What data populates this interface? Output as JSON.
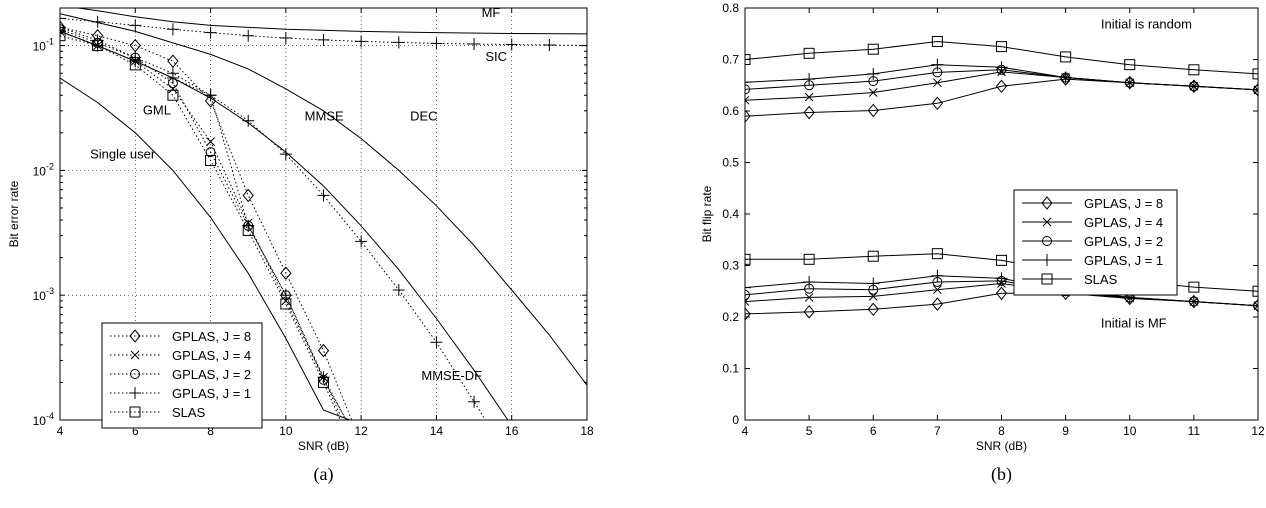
{
  "chart_data": [
    {
      "id": "a",
      "type": "line",
      "panel_label": "(a)",
      "xlabel": "SNR (dB)",
      "ylabel": "Bit error rate",
      "xlim": [
        4,
        18
      ],
      "ylim": [
        0.0001,
        0.2
      ],
      "yscale": "log",
      "grid": true,
      "xticks": [
        4,
        6,
        8,
        10,
        12,
        14,
        16,
        18
      ],
      "yticks": [
        {
          "value": 0.0001,
          "base": "10",
          "exp": "-4"
        },
        {
          "value": 0.001,
          "base": "10",
          "exp": "-3"
        },
        {
          "value": 0.01,
          "base": "10",
          "exp": "-2"
        },
        {
          "value": 0.1,
          "base": "10",
          "exp": "-1"
        }
      ],
      "legend_position": "bottom-left",
      "reference_curves": [
        {
          "label": "MF",
          "x": [
            4,
            5,
            6,
            7,
            8,
            10,
            12,
            14,
            16,
            18
          ],
          "y": [
            0.21,
            0.19,
            0.17,
            0.155,
            0.145,
            0.135,
            0.13,
            0.127,
            0.125,
            0.124
          ]
        },
        {
          "label": "SIC",
          "marker": "plus",
          "dotted": true,
          "x": [
            4,
            5,
            6,
            7,
            8,
            9,
            10,
            11,
            12,
            13,
            14,
            15,
            16,
            17,
            18
          ],
          "y": [
            0.165,
            0.155,
            0.145,
            0.135,
            0.127,
            0.12,
            0.115,
            0.111,
            0.108,
            0.106,
            0.104,
            0.103,
            0.102,
            0.101,
            0.1
          ]
        },
        {
          "label": "DEC",
          "x": [
            4,
            6,
            8,
            9,
            10,
            11,
            12,
            13,
            14,
            15,
            16,
            17,
            18
          ],
          "y": [
            0.18,
            0.13,
            0.085,
            0.065,
            0.045,
            0.03,
            0.018,
            0.01,
            0.0052,
            0.0025,
            0.0011,
            0.00048,
            0.00019
          ]
        },
        {
          "label": "MMSE",
          "x": [
            4,
            5,
            6,
            7,
            8,
            9,
            10,
            11,
            12,
            13,
            14,
            15,
            16,
            17,
            17.4
          ],
          "y": [
            0.13,
            0.1,
            0.075,
            0.055,
            0.038,
            0.024,
            0.014,
            0.0075,
            0.0036,
            0.0016,
            0.00065,
            0.00025,
            9e-05,
            2.8e-05,
            0.0001
          ]
        },
        {
          "label": "MMSE-DF",
          "marker": "plus",
          "dotted": true,
          "x": [
            4,
            5,
            6,
            7,
            8,
            9,
            10,
            11,
            12,
            13,
            14,
            15,
            15.3
          ],
          "y": [
            0.13,
            0.1,
            0.075,
            0.055,
            0.04,
            0.025,
            0.0135,
            0.0063,
            0.0027,
            0.0011,
            0.00042,
            0.00014,
            0.0001
          ]
        },
        {
          "label": "Single user",
          "x": [
            4,
            5,
            6,
            7,
            8,
            9,
            10,
            11,
            11.7
          ],
          "y": [
            0.055,
            0.035,
            0.02,
            0.01,
            0.0042,
            0.0015,
            0.00045,
            0.00012,
            0.0001
          ]
        }
      ],
      "series": [
        {
          "name": "GPLAS, J = 8",
          "marker": "diamond",
          "x": [
            4,
            5,
            6,
            7,
            8,
            9,
            10,
            11,
            11.75
          ],
          "y": [
            0.14,
            0.12,
            0.1,
            0.075,
            0.036,
            0.0063,
            0.0015,
            0.00036,
            0.0001
          ]
        },
        {
          "name": "GPLAS, J = 4",
          "marker": "x",
          "x": [
            4,
            5,
            6,
            7,
            8,
            9,
            10,
            11,
            11.5
          ],
          "y": [
            0.13,
            0.1,
            0.075,
            0.045,
            0.017,
            0.0038,
            0.0009,
            0.00022,
            0.0001
          ]
        },
        {
          "name": "GPLAS, J = 2",
          "marker": "circle",
          "x": [
            4,
            5,
            6,
            7,
            8,
            9,
            10,
            11,
            11.6
          ],
          "y": [
            0.135,
            0.105,
            0.08,
            0.05,
            0.014,
            0.0036,
            0.001,
            0.00021,
            0.0001
          ]
        },
        {
          "name": "GPLAS, J = 1",
          "marker": "plus",
          "x": [
            4,
            5,
            6,
            7,
            8,
            9,
            10,
            11,
            11.6
          ],
          "y": [
            0.14,
            0.11,
            0.08,
            0.06,
            0.04,
            0.0036,
            0.001,
            0.00022,
            0.0001
          ]
        },
        {
          "name": "SLAS",
          "marker": "square",
          "x": [
            4,
            5,
            6,
            7,
            8,
            9,
            10,
            11,
            11.45
          ],
          "y": [
            0.12,
            0.1,
            0.07,
            0.04,
            0.012,
            0.0033,
            0.00085,
            0.0002,
            0.0001
          ]
        }
      ],
      "annotations": [
        {
          "text": "MF",
          "x": 15.2,
          "y": 0.17
        },
        {
          "text": "SIC",
          "x": 15.3,
          "y": 0.075
        },
        {
          "text": "DEC",
          "x": 13.3,
          "y": 0.025
        },
        {
          "text": "MMSE",
          "x": 10.5,
          "y": 0.025
        },
        {
          "text": "GML",
          "x": 6.2,
          "y": 0.028
        },
        {
          "text": "Single user",
          "x": 4.8,
          "y": 0.0125
        },
        {
          "text": "MMSE-DF",
          "x": 13.6,
          "y": 0.00021
        }
      ]
    },
    {
      "id": "b",
      "type": "line",
      "panel_label": "(b)",
      "xlabel": "SNR (dB)",
      "ylabel": "Bit flip rate",
      "xlim": [
        4,
        12
      ],
      "ylim": [
        0,
        0.8
      ],
      "yscale": "linear",
      "grid": false,
      "xticks": [
        4,
        5,
        6,
        7,
        8,
        9,
        10,
        11,
        12
      ],
      "yticks": [
        0,
        0.1,
        0.2,
        0.3,
        0.4,
        0.5,
        0.6,
        0.7,
        0.8
      ],
      "legend_position": "right",
      "groups": [
        {
          "label": "Initial is random",
          "series": [
            {
              "name": "GPLAS, J = 8",
              "marker": "diamond",
              "x": [
                4,
                5,
                6,
                7,
                8,
                9,
                10,
                11,
                12
              ],
              "y": [
                0.59,
                0.597,
                0.601,
                0.615,
                0.648,
                0.662,
                0.655,
                0.648,
                0.641
              ]
            },
            {
              "name": "GPLAS, J = 4",
              "marker": "x",
              "x": [
                4,
                5,
                6,
                7,
                8,
                9,
                10,
                11,
                12
              ],
              "y": [
                0.621,
                0.627,
                0.636,
                0.655,
                0.676,
                0.665,
                0.655,
                0.648,
                0.641
              ]
            },
            {
              "name": "GPLAS, J = 2",
              "marker": "circle",
              "x": [
                4,
                5,
                6,
                7,
                8,
                9,
                10,
                11,
                12
              ],
              "y": [
                0.642,
                0.65,
                0.658,
                0.675,
                0.68,
                0.665,
                0.655,
                0.648,
                0.641
              ]
            },
            {
              "name": "GPLAS, J = 1",
              "marker": "plus",
              "x": [
                4,
                5,
                6,
                7,
                8,
                9,
                10,
                11,
                12
              ],
              "y": [
                0.656,
                0.662,
                0.672,
                0.69,
                0.685,
                0.665,
                0.655,
                0.648,
                0.641
              ]
            },
            {
              "name": "SLAS",
              "marker": "square",
              "x": [
                4,
                5,
                6,
                7,
                8,
                9,
                10,
                11,
                12
              ],
              "y": [
                0.7,
                0.712,
                0.72,
                0.735,
                0.725,
                0.705,
                0.69,
                0.68,
                0.672
              ]
            }
          ]
        },
        {
          "label": "Initial is MF",
          "series": [
            {
              "name": "GPLAS, J = 8",
              "marker": "diamond",
              "x": [
                4,
                5,
                6,
                7,
                8,
                9,
                10,
                11,
                12
              ],
              "y": [
                0.206,
                0.21,
                0.215,
                0.225,
                0.246,
                0.246,
                0.236,
                0.23,
                0.222
              ]
            },
            {
              "name": "GPLAS, J = 4",
              "marker": "x",
              "x": [
                4,
                5,
                6,
                7,
                8,
                9,
                10,
                11,
                12
              ],
              "y": [
                0.23,
                0.238,
                0.24,
                0.253,
                0.265,
                0.248,
                0.237,
                0.23,
                0.222
              ]
            },
            {
              "name": "GPLAS, J = 2",
              "marker": "circle",
              "x": [
                4,
                5,
                6,
                7,
                8,
                9,
                10,
                11,
                12
              ],
              "y": [
                0.243,
                0.255,
                0.253,
                0.268,
                0.27,
                0.25,
                0.238,
                0.23,
                0.222
              ]
            },
            {
              "name": "GPLAS, J = 1",
              "marker": "plus",
              "x": [
                4,
                5,
                6,
                7,
                8,
                9,
                10,
                11,
                12
              ],
              "y": [
                0.257,
                0.268,
                0.265,
                0.28,
                0.275,
                0.252,
                0.238,
                0.23,
                0.222
              ]
            },
            {
              "name": "SLAS",
              "marker": "square",
              "x": [
                4,
                5,
                6,
                7,
                8,
                9,
                10,
                11,
                12
              ],
              "y": [
                0.312,
                0.312,
                0.318,
                0.323,
                0.31,
                0.288,
                0.27,
                0.258,
                0.25
              ]
            }
          ]
        }
      ],
      "annotations": [
        {
          "text": "Initial is random",
          "x": 9.55,
          "y": 0.76
        },
        {
          "text": "Initial is MF",
          "x": 9.55,
          "y": 0.18
        }
      ]
    }
  ]
}
